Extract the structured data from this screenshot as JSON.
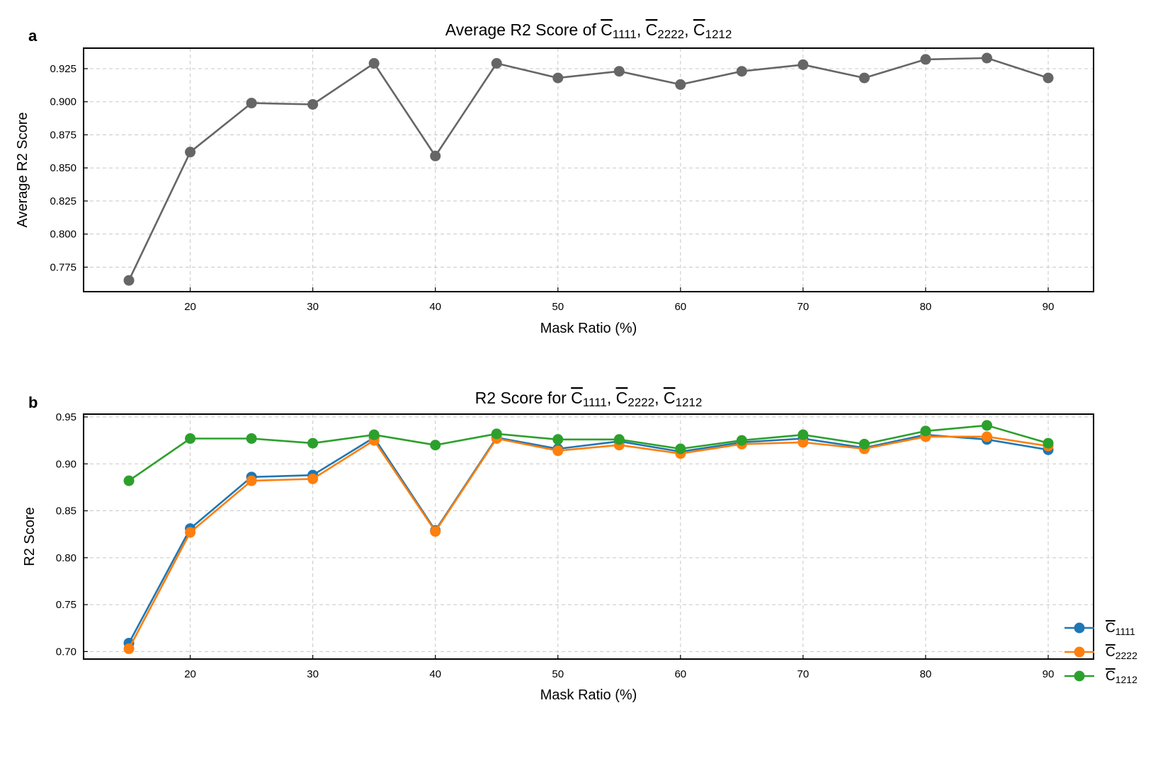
{
  "figure": {
    "panels": [
      {
        "letter": "a",
        "title_text": "Average R2 Score of ",
        "xlabel": "Mask Ratio (%)",
        "ylabel": "Average R2 Score",
        "x_ticks": [
          "20",
          "30",
          "40",
          "50",
          "60",
          "70",
          "80",
          "90"
        ],
        "y_ticks": [
          "0.775",
          "0.800",
          "0.825",
          "0.850",
          "0.875",
          "0.900",
          "0.925"
        ]
      },
      {
        "letter": "b",
        "title_text": "R2 Score for ",
        "xlabel": "Mask Ratio (%)",
        "ylabel": "R2 Score",
        "x_ticks": [
          "20",
          "30",
          "40",
          "50",
          "60",
          "70",
          "80",
          "90"
        ],
        "y_ticks": [
          "0.70",
          "0.75",
          "0.80",
          "0.85",
          "0.90",
          "0.95"
        ]
      }
    ],
    "symbol_letter": "C",
    "subscripts": [
      "1111",
      "2222",
      "1212"
    ]
  },
  "chart_data": [
    {
      "type": "line",
      "title": "Average R2 Score of C̄1111, C̄2222, C̄1212",
      "xlabel": "Mask Ratio (%)",
      "ylabel": "Average R2 Score",
      "xlim": [
        11.3,
        93.7
      ],
      "ylim": [
        0.7565,
        0.9405
      ],
      "grid": true,
      "x": [
        15,
        20,
        25,
        30,
        35,
        40,
        45,
        50,
        55,
        60,
        65,
        70,
        75,
        80,
        85,
        90
      ],
      "series": [
        {
          "name": "",
          "color": "#666666",
          "values": [
            0.765,
            0.862,
            0.899,
            0.898,
            0.929,
            0.859,
            0.929,
            0.918,
            0.923,
            0.913,
            0.923,
            0.928,
            0.918,
            0.932,
            0.933,
            0.918
          ]
        }
      ]
    },
    {
      "type": "line",
      "title": "R2 Score for C̄1111, C̄2222, C̄1212",
      "xlabel": "Mask Ratio (%)",
      "ylabel": "R2 Score",
      "xlim": [
        11.3,
        93.7
      ],
      "ylim": [
        0.692,
        0.953
      ],
      "grid": true,
      "legend_position": "lower-right",
      "x": [
        15,
        20,
        25,
        30,
        35,
        40,
        45,
        50,
        55,
        60,
        65,
        70,
        75,
        80,
        85,
        90
      ],
      "series": [
        {
          "name": "C̄1111",
          "color": "#1f77b4",
          "values": [
            0.709,
            0.831,
            0.886,
            0.888,
            0.928,
            0.829,
            0.928,
            0.916,
            0.924,
            0.913,
            0.923,
            0.927,
            0.917,
            0.931,
            0.926,
            0.915
          ]
        },
        {
          "name": "C̄2222",
          "color": "#ff7f0e",
          "values": [
            0.703,
            0.827,
            0.882,
            0.884,
            0.925,
            0.828,
            0.927,
            0.914,
            0.92,
            0.911,
            0.921,
            0.923,
            0.916,
            0.929,
            0.929,
            0.919
          ]
        },
        {
          "name": "C̄1212",
          "color": "#2ca02c",
          "values": [
            0.882,
            0.927,
            0.927,
            0.922,
            0.931,
            0.92,
            0.932,
            0.926,
            0.926,
            0.916,
            0.925,
            0.931,
            0.921,
            0.935,
            0.941,
            0.922
          ]
        }
      ]
    }
  ]
}
